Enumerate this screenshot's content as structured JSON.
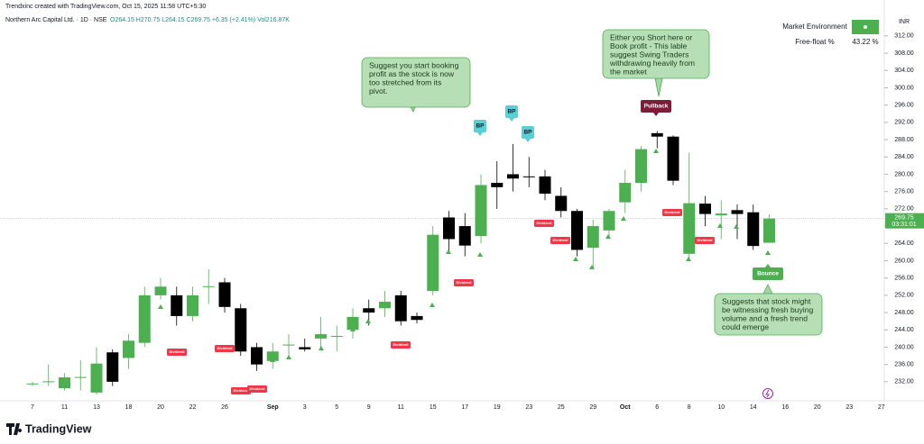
{
  "header": {
    "credit": "Trendxinc created with TradingView.com, Oct 15, 2025 11:58 UTC+5:30",
    "symbol": "Northern Arc Capital Ltd. · 1D · NSE",
    "ohlc": "O264.15 H270.75 L264.15 C269.75 +6.35 (+2.41%) Vol216.87K"
  },
  "panel": {
    "market_environment": "Market Environment",
    "free_float_label": "Free-float %",
    "free_float_value": "43.22 %"
  },
  "footer": {
    "brand": "TradingView"
  },
  "chart_data": {
    "type": "candlestick",
    "currency": "INR",
    "up_color": "#4caf50",
    "down_color": "#000000",
    "categories": [
      "7",
      null,
      "11",
      null,
      "13",
      null,
      "18",
      null,
      "20",
      null,
      "22",
      null,
      "26",
      null,
      null,
      "Sep",
      null,
      "3",
      null,
      "5",
      null,
      "9",
      null,
      "11",
      null,
      "15",
      null,
      "17",
      null,
      "19",
      null,
      "23",
      null,
      "25",
      null,
      "29",
      null,
      "Oct",
      null,
      "6",
      null,
      "8",
      null,
      "10",
      null,
      "14",
      null,
      "16",
      null,
      "20",
      null,
      "23",
      null,
      "27"
    ],
    "open": [
      231.5,
      232,
      230.5,
      233,
      229.5,
      238.8,
      237.5,
      241,
      252,
      252,
      247.2,
      254,
      255,
      249,
      240,
      236.8,
      240.5,
      240,
      242,
      242.5,
      244,
      249,
      249,
      252,
      247.2,
      253,
      270,
      268,
      265.7,
      278,
      280,
      279.5,
      279.5,
      275,
      271.5,
      263,
      267,
      273.5,
      278,
      289.5,
      288.7,
      261.6,
      273.2,
      270.5,
      271.7,
      271.2,
      264.15,
      null,
      null,
      null,
      null,
      null,
      null,
      null
    ],
    "high": [
      232,
      236,
      234,
      237,
      240,
      239.5,
      243,
      254,
      256,
      254,
      254,
      258,
      256,
      250,
      241,
      241,
      243,
      242,
      247,
      245,
      249,
      251,
      253,
      253,
      248,
      268,
      271.5,
      271,
      280,
      283,
      287,
      284,
      281,
      277,
      272,
      269.5,
      272,
      281,
      286.5,
      290,
      289,
      285,
      275,
      274,
      273,
      273,
      270.75,
      null,
      null,
      null,
      null,
      null,
      null,
      null
    ],
    "low": [
      231,
      231,
      230,
      230,
      229,
      231,
      235,
      240,
      251,
      245,
      246,
      250,
      248,
      238,
      234.5,
      235,
      238,
      239,
      240,
      239,
      242,
      245,
      247,
      245,
      245.5,
      252,
      262,
      261,
      264,
      272,
      276,
      277,
      274,
      270,
      261,
      258,
      265,
      271,
      276,
      286,
      277.5,
      260,
      268,
      265,
      265,
      262.5,
      264.15,
      null,
      null,
      null,
      null,
      null,
      null,
      null
    ],
    "close": [
      231.6,
      232.1,
      233,
      233.1,
      236.2,
      232,
      241.5,
      252,
      254,
      247.2,
      252,
      254.1,
      249.3,
      239,
      236,
      239,
      240.6,
      239.5,
      243,
      242.6,
      247,
      248,
      250.5,
      246,
      246.3,
      266,
      265,
      263.5,
      277.5,
      277,
      279,
      279.4,
      275.5,
      271.5,
      262.5,
      268,
      271.5,
      278,
      285.8,
      288.7,
      278.5,
      273.3,
      270.8,
      270.9,
      270.8,
      263.4,
      269.75,
      null,
      null,
      null,
      null,
      null,
      null,
      null
    ],
    "ylim": [
      227.6,
      320.3
    ],
    "yticks": [
      {
        "value": 312,
        "label": "312.00"
      },
      {
        "value": 308,
        "label": "308.00"
      },
      {
        "value": 304,
        "label": "304.00"
      },
      {
        "value": 300,
        "label": "300.00"
      },
      {
        "value": 296,
        "label": "296.00"
      },
      {
        "value": 292,
        "label": "292.00"
      },
      {
        "value": 288,
        "label": "288.00"
      },
      {
        "value": 284,
        "label": "284.00"
      },
      {
        "value": 280,
        "label": "280.00"
      },
      {
        "value": 276,
        "label": "276.00"
      },
      {
        "value": 272,
        "label": "272.00"
      },
      {
        "value": 268,
        "label": "268.00"
      },
      {
        "value": 264,
        "label": "264.00"
      },
      {
        "value": 260,
        "label": "260.00"
      },
      {
        "value": 256,
        "label": "256.00"
      },
      {
        "value": 252,
        "label": "252.00"
      },
      {
        "value": 248,
        "label": "248.00"
      },
      {
        "value": 244,
        "label": "244.00"
      },
      {
        "value": 240,
        "label": "240.00"
      },
      {
        "value": 236,
        "label": "236.00"
      },
      {
        "value": 232,
        "label": "232.00"
      }
    ],
    "last_price": {
      "value": 269.75,
      "label": "269.75",
      "countdown": "03:31:01"
    },
    "tags": [
      "BP",
      "BP",
      "BP",
      "Pullback",
      "Bounce"
    ],
    "dividend_label": "Dividend",
    "callouts": [
      [
        "Suggest you start booking",
        "profit as the stock is now",
        "too stretched from its",
        "pivot."
      ],
      [
        "Either you Short here or",
        "Book profit - This lable",
        "suggest Swing Traders",
        "withdrawing heavily from",
        "the market"
      ],
      [
        "Suggests that stock might",
        "be witnessing fresh buying",
        "volume and a fresh trend",
        "could emerge"
      ]
    ]
  }
}
